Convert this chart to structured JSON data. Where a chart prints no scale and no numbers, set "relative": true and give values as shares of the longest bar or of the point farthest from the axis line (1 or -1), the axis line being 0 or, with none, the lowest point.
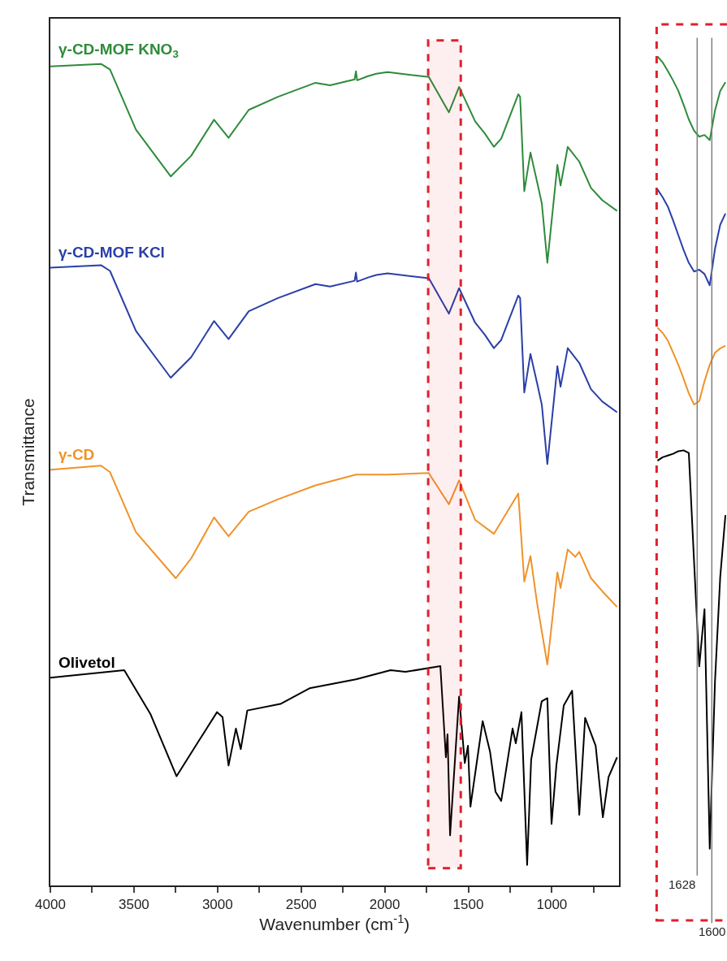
{
  "chart_data": [
    {
      "type": "line",
      "relative": true,
      "xlabel": "Wavenumber (cm$^{-1}$)",
      "ylabel": "Transmittance",
      "xlim": [
        4000,
        600
      ],
      "xticks": [
        4000,
        {
          "value": 3750,
          "label": null
        },
        3500,
        {
          "value": 3250,
          "label": null
        },
        3000,
        {
          "value": 2750,
          "label": null
        },
        2500,
        {
          "value": 2250,
          "label": null
        },
        2000,
        {
          "value": 1750,
          "label": null
        },
        1500,
        {
          "value": 1250,
          "label": null
        },
        1000,
        {
          "value": 750,
          "label": null
        }
      ],
      "grid": false,
      "line_style": "solid",
      "marker": "none",
      "bands": [
        {
          "axis": "x",
          "from": 1740,
          "to": 1545,
          "label": null,
          "color": "#e0202c"
        }
      ],
      "series": [
        {
          "name": "γ-CD-MOF KNO$_{3}$",
          "color": "#2e8b3a",
          "x": [
            4000,
            3697,
            3643,
            3488,
            3280,
            3158,
            3021,
            2934,
            2813,
            2638,
            2414,
            2327,
            2180,
            2172,
            2165,
            2100,
            2050,
            1983,
            1736,
            1616,
            1555,
            1459,
            1400,
            1347,
            1303,
            1201,
            1190,
            1165,
            1128,
            1088,
            1060,
            1027,
            967,
            948,
            905,
            836,
            766,
            698,
            610
          ],
          "values": [
            0.997,
            1.0,
            0.993,
            0.92,
            0.863,
            0.888,
            0.932,
            0.91,
            0.944,
            0.96,
            0.977,
            0.974,
            0.981,
            0.991,
            0.98,
            0.985,
            0.988,
            0.99,
            0.984,
            0.941,
            0.972,
            0.93,
            0.915,
            0.899,
            0.909,
            0.963,
            0.96,
            0.845,
            0.892,
            0.856,
            0.83,
            0.758,
            0.877,
            0.852,
            0.899,
            0.881,
            0.849,
            0.834,
            0.821
          ]
        },
        {
          "name": "γ-CD-MOF KCl",
          "color": "#2a3fa8",
          "x": [
            4000,
            3697,
            3643,
            3488,
            3280,
            3158,
            3021,
            2934,
            2813,
            2638,
            2414,
            2327,
            2180,
            2172,
            2165,
            2100,
            2050,
            1983,
            1736,
            1616,
            1555,
            1459,
            1400,
            1347,
            1303,
            1201,
            1190,
            1165,
            1128,
            1088,
            1060,
            1027,
            967,
            948,
            905,
            836,
            766,
            698,
            610
          ],
          "values": [
            0.752,
            0.755,
            0.748,
            0.675,
            0.618,
            0.643,
            0.687,
            0.665,
            0.699,
            0.715,
            0.732,
            0.729,
            0.736,
            0.746,
            0.735,
            0.74,
            0.743,
            0.745,
            0.739,
            0.696,
            0.727,
            0.685,
            0.67,
            0.654,
            0.664,
            0.718,
            0.715,
            0.6,
            0.647,
            0.611,
            0.585,
            0.513,
            0.632,
            0.607,
            0.654,
            0.636,
            0.604,
            0.589,
            0.576
          ]
        },
        {
          "name": "γ-CD",
          "color": "#f0922a",
          "x": [
            4000,
            3697,
            3643,
            3488,
            3250,
            3158,
            3021,
            2934,
            2813,
            2638,
            2414,
            2172,
            1983,
            1737,
            1616,
            1555,
            1459,
            1347,
            1201,
            1165,
            1128,
            1088,
            1027,
            967,
            948,
            905,
            860,
            836,
            766,
            698,
            610
          ],
          "values": [
            0.506,
            0.511,
            0.503,
            0.43,
            0.374,
            0.398,
            0.448,
            0.425,
            0.455,
            0.47,
            0.487,
            0.5,
            0.5,
            0.502,
            0.464,
            0.493,
            0.445,
            0.428,
            0.477,
            0.37,
            0.401,
            0.343,
            0.269,
            0.381,
            0.362,
            0.409,
            0.4,
            0.406,
            0.374,
            0.358,
            0.339
          ]
        },
        {
          "name": "Olivetol",
          "color": "#000000",
          "x": [
            4000,
            3558,
            3402,
            3245,
            3109,
            3003,
            2970,
            2934,
            2890,
            2861,
            2822,
            2624,
            2450,
            2172,
            1965,
            1876,
            1667,
            1634,
            1624,
            1609,
            1555,
            1521,
            1502,
            1487,
            1414,
            1370,
            1337,
            1303,
            1235,
            1216,
            1182,
            1148,
            1124,
            1061,
            1027,
            1002,
            973,
            929,
            879,
            836,
            801,
            738,
            695,
            661,
            610
          ],
          "values": [
            0.253,
            0.262,
            0.209,
            0.133,
            0.177,
            0.211,
            0.205,
            0.146,
            0.191,
            0.166,
            0.213,
            0.221,
            0.24,
            0.251,
            0.262,
            0.26,
            0.267,
            0.156,
            0.184,
            0.061,
            0.23,
            0.149,
            0.17,
            0.096,
            0.2,
            0.163,
            0.114,
            0.103,
            0.191,
            0.173,
            0.211,
            0.025,
            0.153,
            0.224,
            0.228,
            0.075,
            0.146,
            0.219,
            0.237,
            0.086,
            0.204,
            0.17,
            0.083,
            0.132,
            0.156
          ]
        }
      ]
    },
    {
      "type": "line",
      "relative": true,
      "grid": false,
      "line_style": "solid",
      "marker": "none",
      "categories": [
        null,
        null,
        null,
        null,
        null,
        null,
        null,
        null,
        null,
        null,
        null,
        null,
        null,
        null
      ],
      "annotations": [
        "1628",
        "1600"
      ],
      "series": [
        {
          "color": "#2e8b3a",
          "values": [
            1.0,
            0.993,
            0.983,
            0.972,
            0.96,
            0.944,
            0.927,
            0.914,
            0.907,
            0.909,
            0.903,
            0.937,
            0.96,
            0.97
          ]
        },
        {
          "color": "#2a3fa8",
          "values": [
            0.846,
            0.837,
            0.826,
            0.81,
            0.793,
            0.776,
            0.761,
            0.751,
            0.753,
            0.748,
            0.735,
            0.777,
            0.805,
            0.818
          ]
        },
        {
          "color": "#f0922a",
          "values": [
            0.686,
            0.68,
            0.671,
            0.657,
            0.643,
            0.627,
            0.61,
            0.597,
            0.601,
            0.624,
            0.643,
            0.657,
            0.662,
            0.665
          ]
        },
        {
          "color": "#000000",
          "values": [
            0.532,
            0.536,
            0.538,
            0.54,
            0.543,
            0.544,
            0.541,
            0.416,
            0.294,
            0.36,
            0.083,
            0.276,
            0.397,
            0.469
          ]
        }
      ]
    }
  ]
}
